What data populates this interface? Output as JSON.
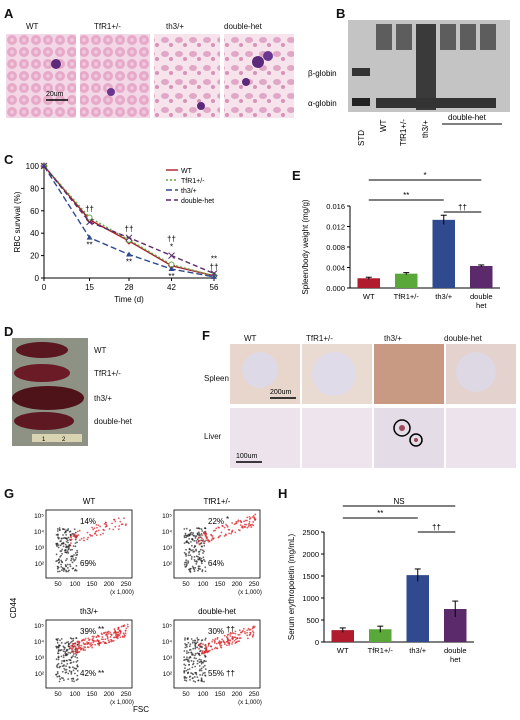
{
  "panels": {
    "A": "A",
    "B": "B",
    "C": "C",
    "D": "D",
    "E": "E",
    "F": "F",
    "G": "G",
    "H": "H"
  },
  "groups": [
    "WT",
    "TfR1+/-",
    "th3/+",
    "double-het"
  ],
  "colors": {
    "wt": "#b01c2e",
    "tfr": "#5aa83a",
    "th3": "#2f4a8f",
    "dh": "#5a2a6a"
  },
  "panelA": {
    "scale": "20um"
  },
  "panelB": {
    "bands": [
      "β-globin",
      "α-globin"
    ],
    "lanes": [
      "STD",
      "WT",
      "TfR1+/-",
      "th3/+"
    ],
    "group_label": "double-het"
  },
  "panelC": {
    "chart_data": {
      "type": "line",
      "xlabel": "Time (d)",
      "ylabel": "RBC survival (%)",
      "x": [
        0,
        15,
        28,
        42,
        56
      ],
      "xlim": [
        0,
        56
      ],
      "ylim": [
        0,
        100
      ],
      "yticks": [
        0,
        20,
        40,
        60,
        80,
        100
      ],
      "series": [
        {
          "name": "WT",
          "values": [
            100,
            52,
            33,
            11,
            2
          ]
        },
        {
          "name": "TfR1+/-",
          "values": [
            100,
            54,
            34,
            12,
            2
          ]
        },
        {
          "name": "th3/+",
          "values": [
            100,
            36,
            21,
            8,
            1
          ]
        },
        {
          "name": "double-het",
          "values": [
            100,
            50,
            36,
            20,
            4
          ]
        }
      ],
      "annotations": [
        {
          "x": 15,
          "text": "††",
          "pos": "above"
        },
        {
          "x": 15,
          "text": "**",
          "pos": "below"
        },
        {
          "x": 28,
          "text": "††",
          "pos": "above"
        },
        {
          "x": 28,
          "text": "**",
          "pos": "below"
        },
        {
          "x": 42,
          "text": "*",
          "pos": "above"
        },
        {
          "x": 42,
          "text": "††",
          "pos": "above2"
        },
        {
          "x": 42,
          "text": "**",
          "pos": "below"
        },
        {
          "x": 56,
          "text": "**",
          "pos": "above"
        },
        {
          "x": 56,
          "text": "††",
          "pos": "above2"
        }
      ]
    }
  },
  "panelD": {
    "labels": [
      "WT",
      "TfR1+/-",
      "th3/+",
      "double-het"
    ]
  },
  "panelE": {
    "chart_data": {
      "type": "bar",
      "categories": [
        "WT",
        "TfR1+/-",
        "th3/+",
        "double het"
      ],
      "values": [
        0.0019,
        0.0028,
        0.0133,
        0.0043
      ],
      "errors": [
        0.0002,
        0.0002,
        0.0009,
        0.0002
      ],
      "ylabel": "Spleen/body weight (mg/g)",
      "ylim": [
        0,
        0.016
      ],
      "yticks": [
        "0.000",
        "0.004",
        "0.008",
        "0.012",
        "0.016"
      ],
      "sig": [
        {
          "from": 0,
          "to": 3,
          "text": "*"
        },
        {
          "from": 0,
          "to": 2,
          "text": "**"
        },
        {
          "from": 2,
          "to": 3,
          "text": "††"
        }
      ]
    }
  },
  "panelF": {
    "cols": [
      "WT",
      "TfR1+/-",
      "th3/+",
      "double-het"
    ],
    "rows": [
      "Spleen",
      "Liver"
    ],
    "scale_spleen": "200um",
    "scale_liver": "100um"
  },
  "panelG": {
    "plots": [
      {
        "title": "WT",
        "top": "14%",
        "bottom": "69%",
        "top_sig": "",
        "bottom_sig": ""
      },
      {
        "title": "TfR1+/-",
        "top": "22%",
        "bottom": "64%",
        "top_sig": "*",
        "bottom_sig": ""
      },
      {
        "title": "th3/+",
        "top": "39%",
        "bottom": "42%",
        "top_sig": "**",
        "bottom_sig": "**"
      },
      {
        "title": "double-het",
        "top": "30%",
        "bottom": "55%",
        "top_sig": "††",
        "bottom_sig": "††"
      }
    ],
    "yticks": [
      "10⁵",
      "10⁴",
      "10³",
      "10²"
    ],
    "xticks": [
      "50",
      "100",
      "150",
      "200",
      "250"
    ],
    "xunit": "(x 1,000)",
    "ylabel": "CD44",
    "xlabel": "FSC"
  },
  "panelH": {
    "chart_data": {
      "type": "bar",
      "categories": [
        "WT",
        "TfR1+/-",
        "th3/+",
        "double het"
      ],
      "values": [
        270,
        290,
        1520,
        750
      ],
      "errors": [
        50,
        70,
        140,
        180
      ],
      "ylabel": "Serum erythropoietin (mg/mL)",
      "ylim": [
        0,
        2500
      ],
      "yticks": [
        "0",
        "500",
        "1000",
        "1500",
        "2000",
        "2500"
      ],
      "sig": [
        {
          "from": 0,
          "to": 3,
          "text": "NS"
        },
        {
          "from": 0,
          "to": 2,
          "text": "**"
        },
        {
          "from": 2,
          "to": 3,
          "text": "††"
        }
      ]
    }
  }
}
